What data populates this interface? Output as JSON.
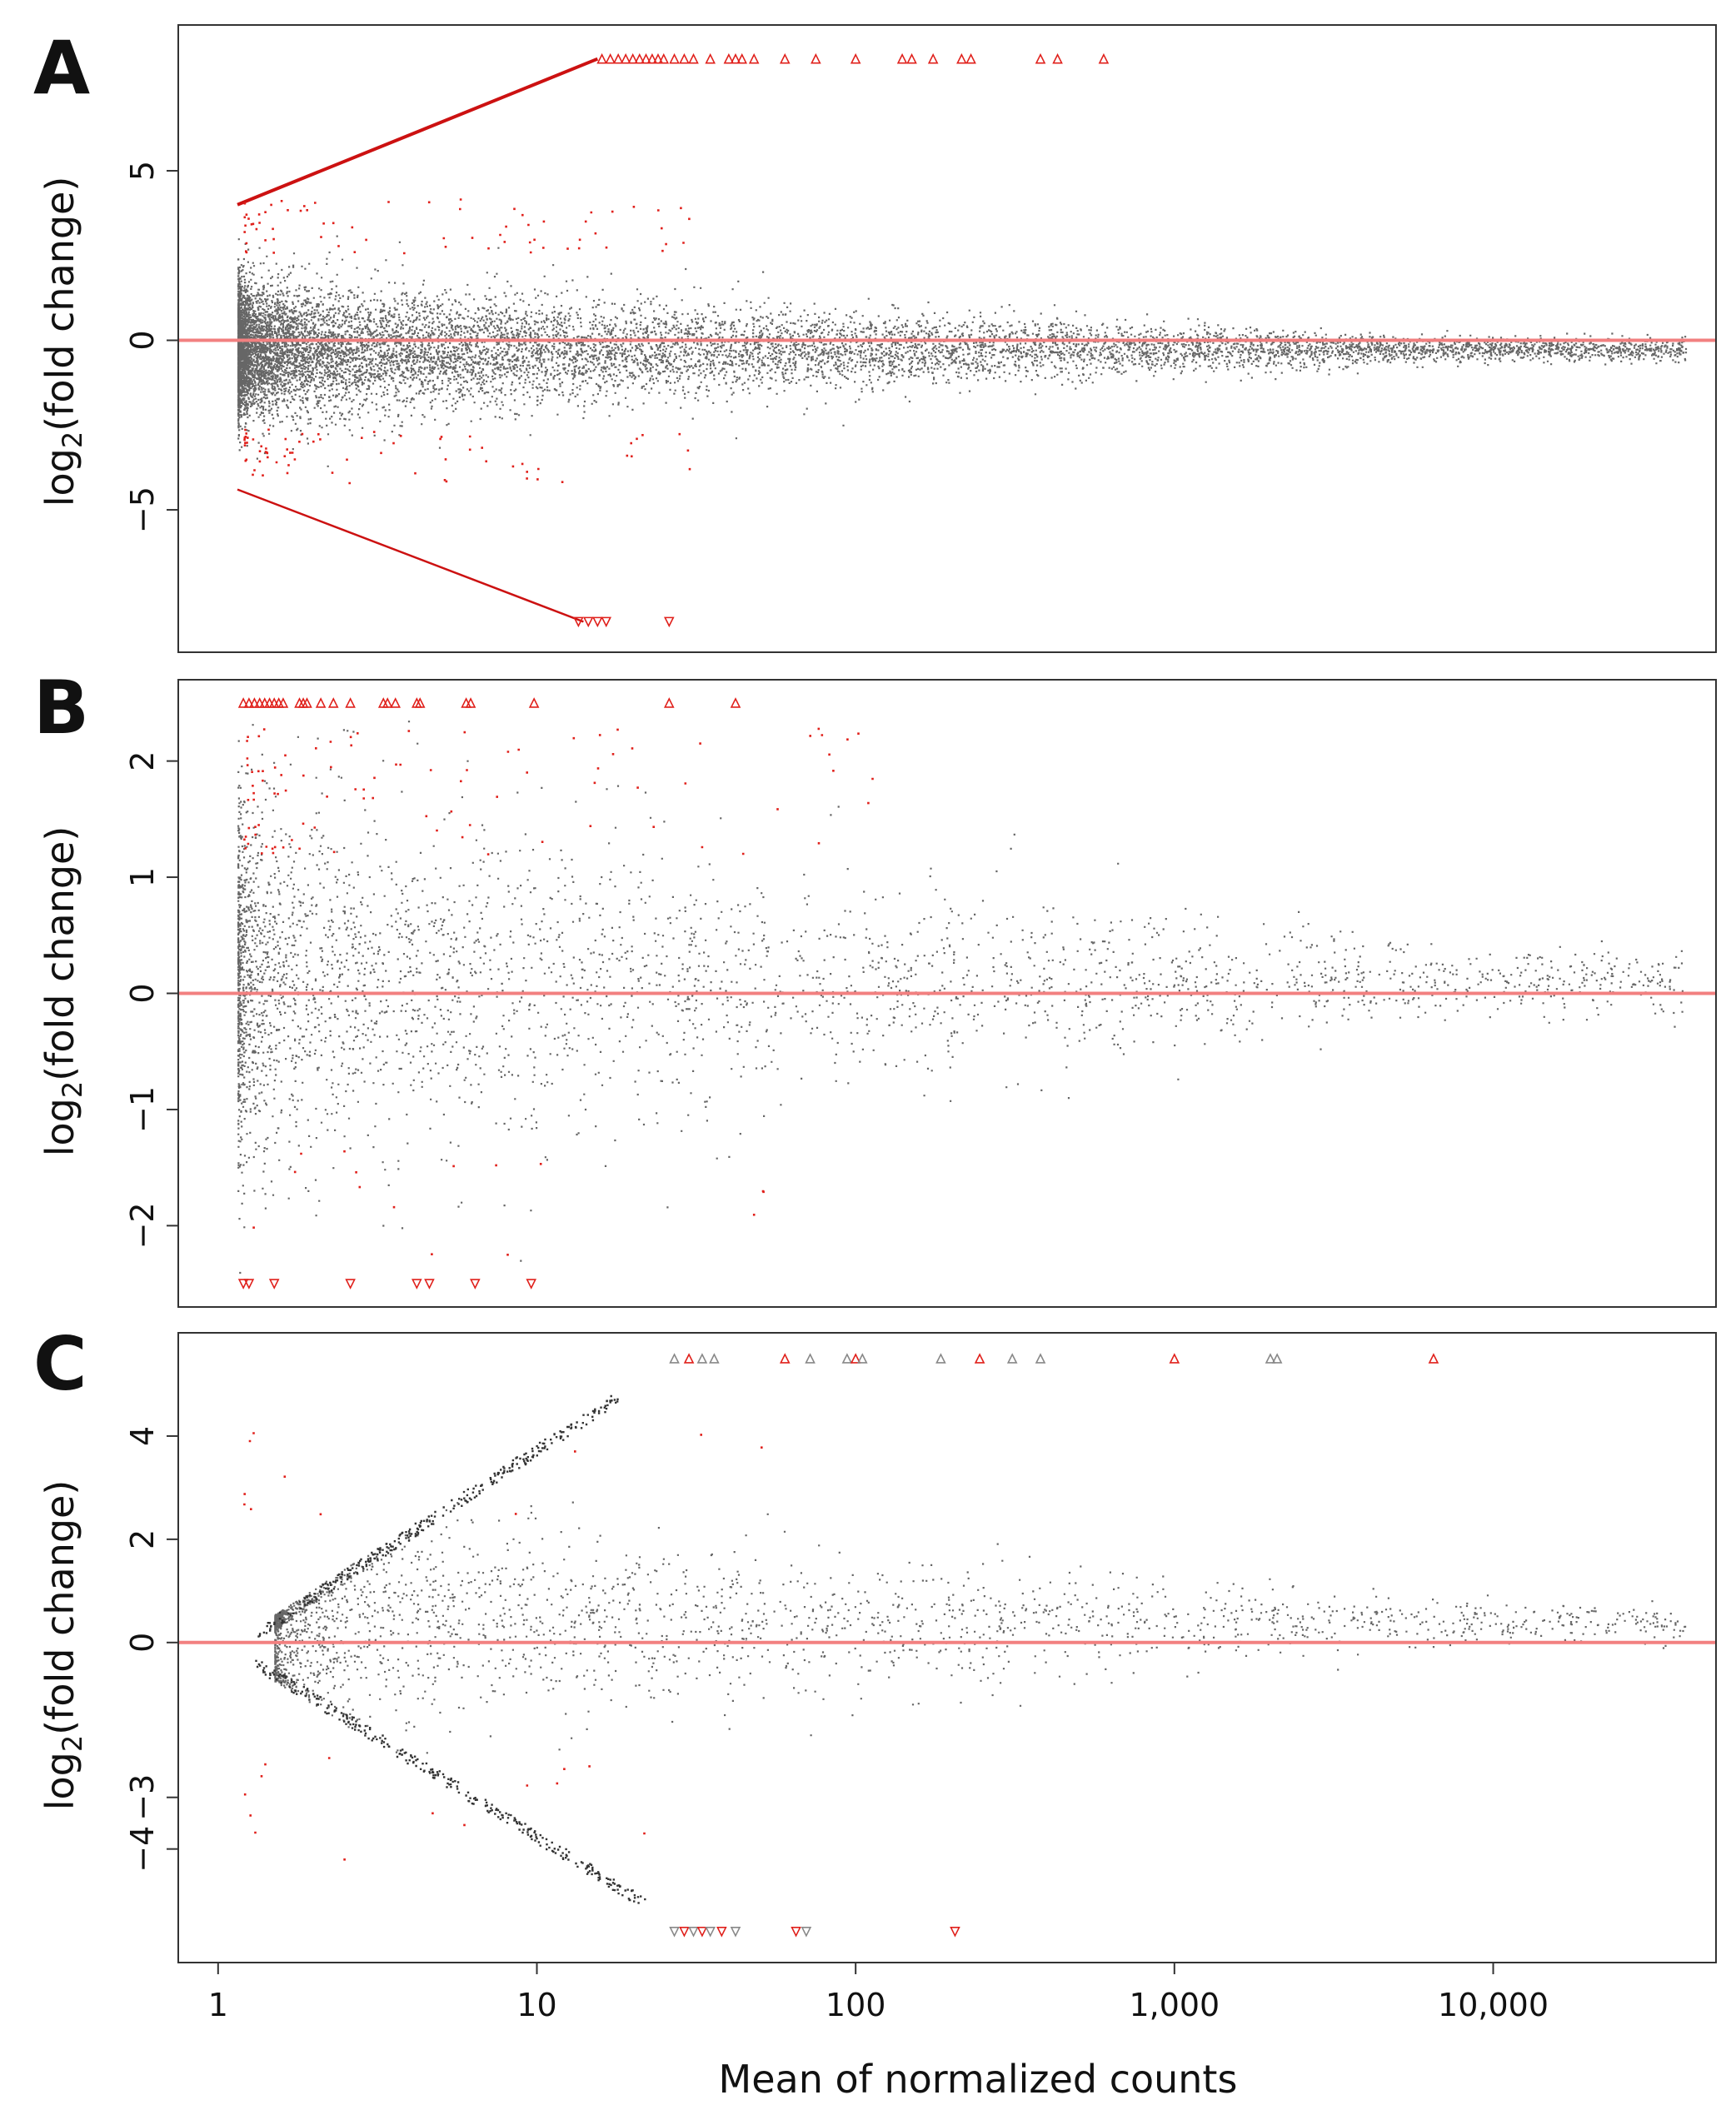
{
  "figure": {
    "xlabel": "Mean of normalized counts",
    "x_ticks": [
      {
        "value": 1,
        "label": "1"
      },
      {
        "value": 10,
        "label": "10"
      },
      {
        "value": 100,
        "label": "100"
      },
      {
        "value": 1000,
        "label": "1,000"
      },
      {
        "value": 10000,
        "label": "10,000"
      }
    ]
  },
  "colors": {
    "background_points": "#333333",
    "significant_points": "#e0201b",
    "zero_line": "#f28080",
    "threshold_line": "#cc1111"
  },
  "chart_data": [
    {
      "panel": "A",
      "type": "scatter",
      "subtype": "MA-plot",
      "xscale": "log10",
      "xlim": [
        0.75,
        50000
      ],
      "ylim": [
        -9.2,
        9.3
      ],
      "xlabel": "Mean of normalized counts",
      "ylabel": "log2(fold change)",
      "ylabel_base": "log",
      "ylabel_sub": "2",
      "ylabel_rest": "(fold change)",
      "y_ticks": [
        {
          "value": 5,
          "label": "5"
        },
        {
          "value": 0,
          "label": "0"
        },
        {
          "value": -5,
          "label": "−5"
        }
      ],
      "reference_line_y": 0,
      "point_cloud": {
        "n": 11000,
        "x_range": [
          1.15,
          40000
        ],
        "spread_sd_at_low_count": 0.95,
        "center_y": -0.25
      },
      "significant_up_boundary": {
        "x_start": 1.15,
        "y_start": 4.0,
        "x_end": 15.5,
        "y_end": 8.3
      },
      "significant_down_boundary": {
        "x_start": 1.15,
        "y_start": -4.4,
        "x_end": 14.0,
        "y_end": -8.3
      },
      "capped_up": {
        "y": 8.3,
        "x": [
          16,
          17,
          18,
          19,
          20,
          21,
          22,
          23,
          24,
          25,
          27,
          29,
          31,
          35,
          40,
          42,
          44,
          48,
          60,
          75,
          100,
          140,
          150,
          175,
          215,
          230,
          380,
          430,
          600
        ]
      },
      "capped_down": {
        "y": -8.3,
        "x": [
          13.5,
          14.5,
          15.5,
          16.5,
          26
        ]
      }
    },
    {
      "panel": "B",
      "type": "scatter",
      "subtype": "MA-plot",
      "xscale": "log10",
      "xlim": [
        0.75,
        50000
      ],
      "ylim": [
        -2.7,
        2.7
      ],
      "xlabel": "Mean of normalized counts",
      "ylabel": "log2(fold change)",
      "ylabel_base": "log",
      "ylabel_sub": "2",
      "ylabel_rest": "(fold change)",
      "y_ticks": [
        {
          "value": 2,
          "label": "2"
        },
        {
          "value": 1,
          "label": "1"
        },
        {
          "value": 0,
          "label": "0"
        },
        {
          "value": -1,
          "label": "−1"
        },
        {
          "value": -2,
          "label": "−2"
        }
      ],
      "reference_line_y": 0,
      "point_cloud": {
        "n": 3400,
        "x_range": [
          1.15,
          40000
        ],
        "spread_sd_at_low_count": 0.8,
        "center_y": 0.1
      },
      "capped_up": {
        "y": 2.5,
        "x": [
          1.2,
          1.25,
          1.3,
          1.35,
          1.4,
          1.45,
          1.5,
          1.55,
          1.6,
          1.8,
          1.85,
          1.9,
          2.1,
          2.3,
          2.6,
          3.3,
          3.4,
          3.6,
          4.2,
          4.3,
          6.0,
          6.2,
          9.8,
          26,
          42
        ]
      },
      "capped_down": {
        "y": -2.5,
        "x": [
          1.2,
          1.25,
          1.5,
          2.6,
          4.2,
          4.6,
          6.4,
          9.6
        ]
      }
    },
    {
      "panel": "C",
      "type": "scatter",
      "subtype": "MA-plot",
      "xscale": "log10",
      "xlim": [
        0.75,
        50000
      ],
      "ylim": [
        -6.2,
        6.0
      ],
      "xlabel": "Mean of normalized counts",
      "ylabel": "log2(fold change)",
      "ylabel_base": "log",
      "ylabel_sub": "2",
      "ylabel_rest": "(fold change)",
      "y_ticks": [
        {
          "value": 4,
          "label": "4"
        },
        {
          "value": 2,
          "label": "2"
        },
        {
          "value": 0,
          "label": "0"
        },
        {
          "value": -3,
          "label": "−3"
        },
        {
          "value": -4,
          "label": "−4"
        }
      ],
      "reference_line_y": 0,
      "point_cloud": {
        "n": 2400,
        "x_range": [
          1.5,
          40000
        ],
        "spread_sd_at_low_count": 1.1,
        "center_y": 0.4
      },
      "funnel_upper": {
        "x_start": 1.3,
        "y_start": 0.3,
        "x_end": 18,
        "y_end": 4.9
      },
      "funnel_lower": {
        "x_start": 1.3,
        "y_start": -0.5,
        "x_end": 22,
        "y_end": -5.2
      },
      "capped_up": {
        "y": 5.5,
        "x": [
          27,
          30,
          33,
          36,
          60,
          72,
          94,
          100,
          105,
          185,
          245,
          310,
          380,
          1000,
          2000,
          2100,
          6500
        ]
      },
      "capped_down": {
        "y": -5.6,
        "x": [
          27,
          29,
          31,
          33,
          35,
          38,
          42,
          65,
          70,
          205
        ]
      }
    }
  ]
}
